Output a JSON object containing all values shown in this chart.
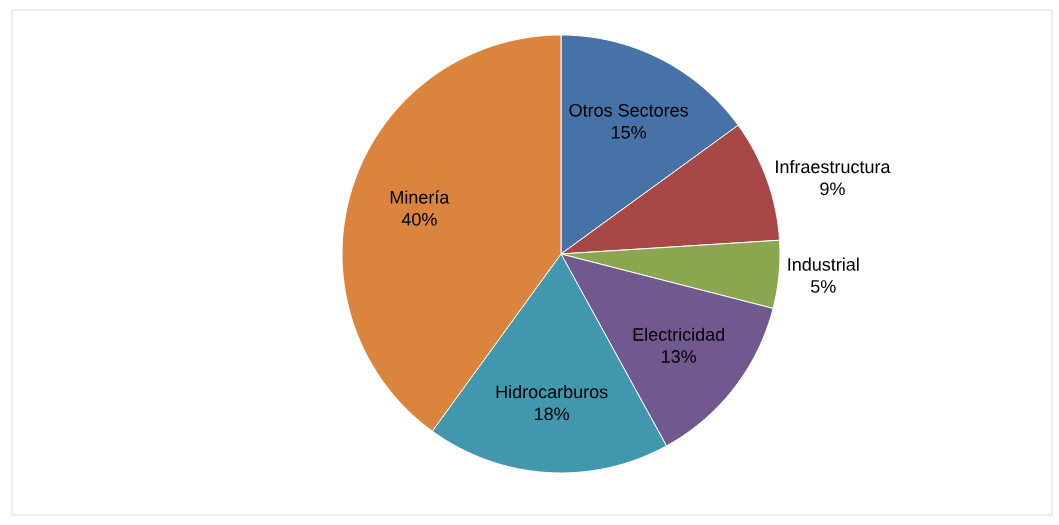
{
  "chart_data": {
    "type": "pie",
    "categories": [
      "Otros Sectores",
      "Infraestructura",
      "Industrial",
      "Electricidad",
      "Hidrocarburos",
      "Minería"
    ],
    "values": [
      15,
      9,
      5,
      13,
      18,
      40
    ],
    "value_labels": [
      "15%",
      "9%",
      "5%",
      "13%",
      "18%",
      "40%"
    ],
    "colors": [
      "#4672a8",
      "#a84846",
      "#8aa64e",
      "#71598f",
      "#4198ae",
      "#db843d"
    ]
  }
}
